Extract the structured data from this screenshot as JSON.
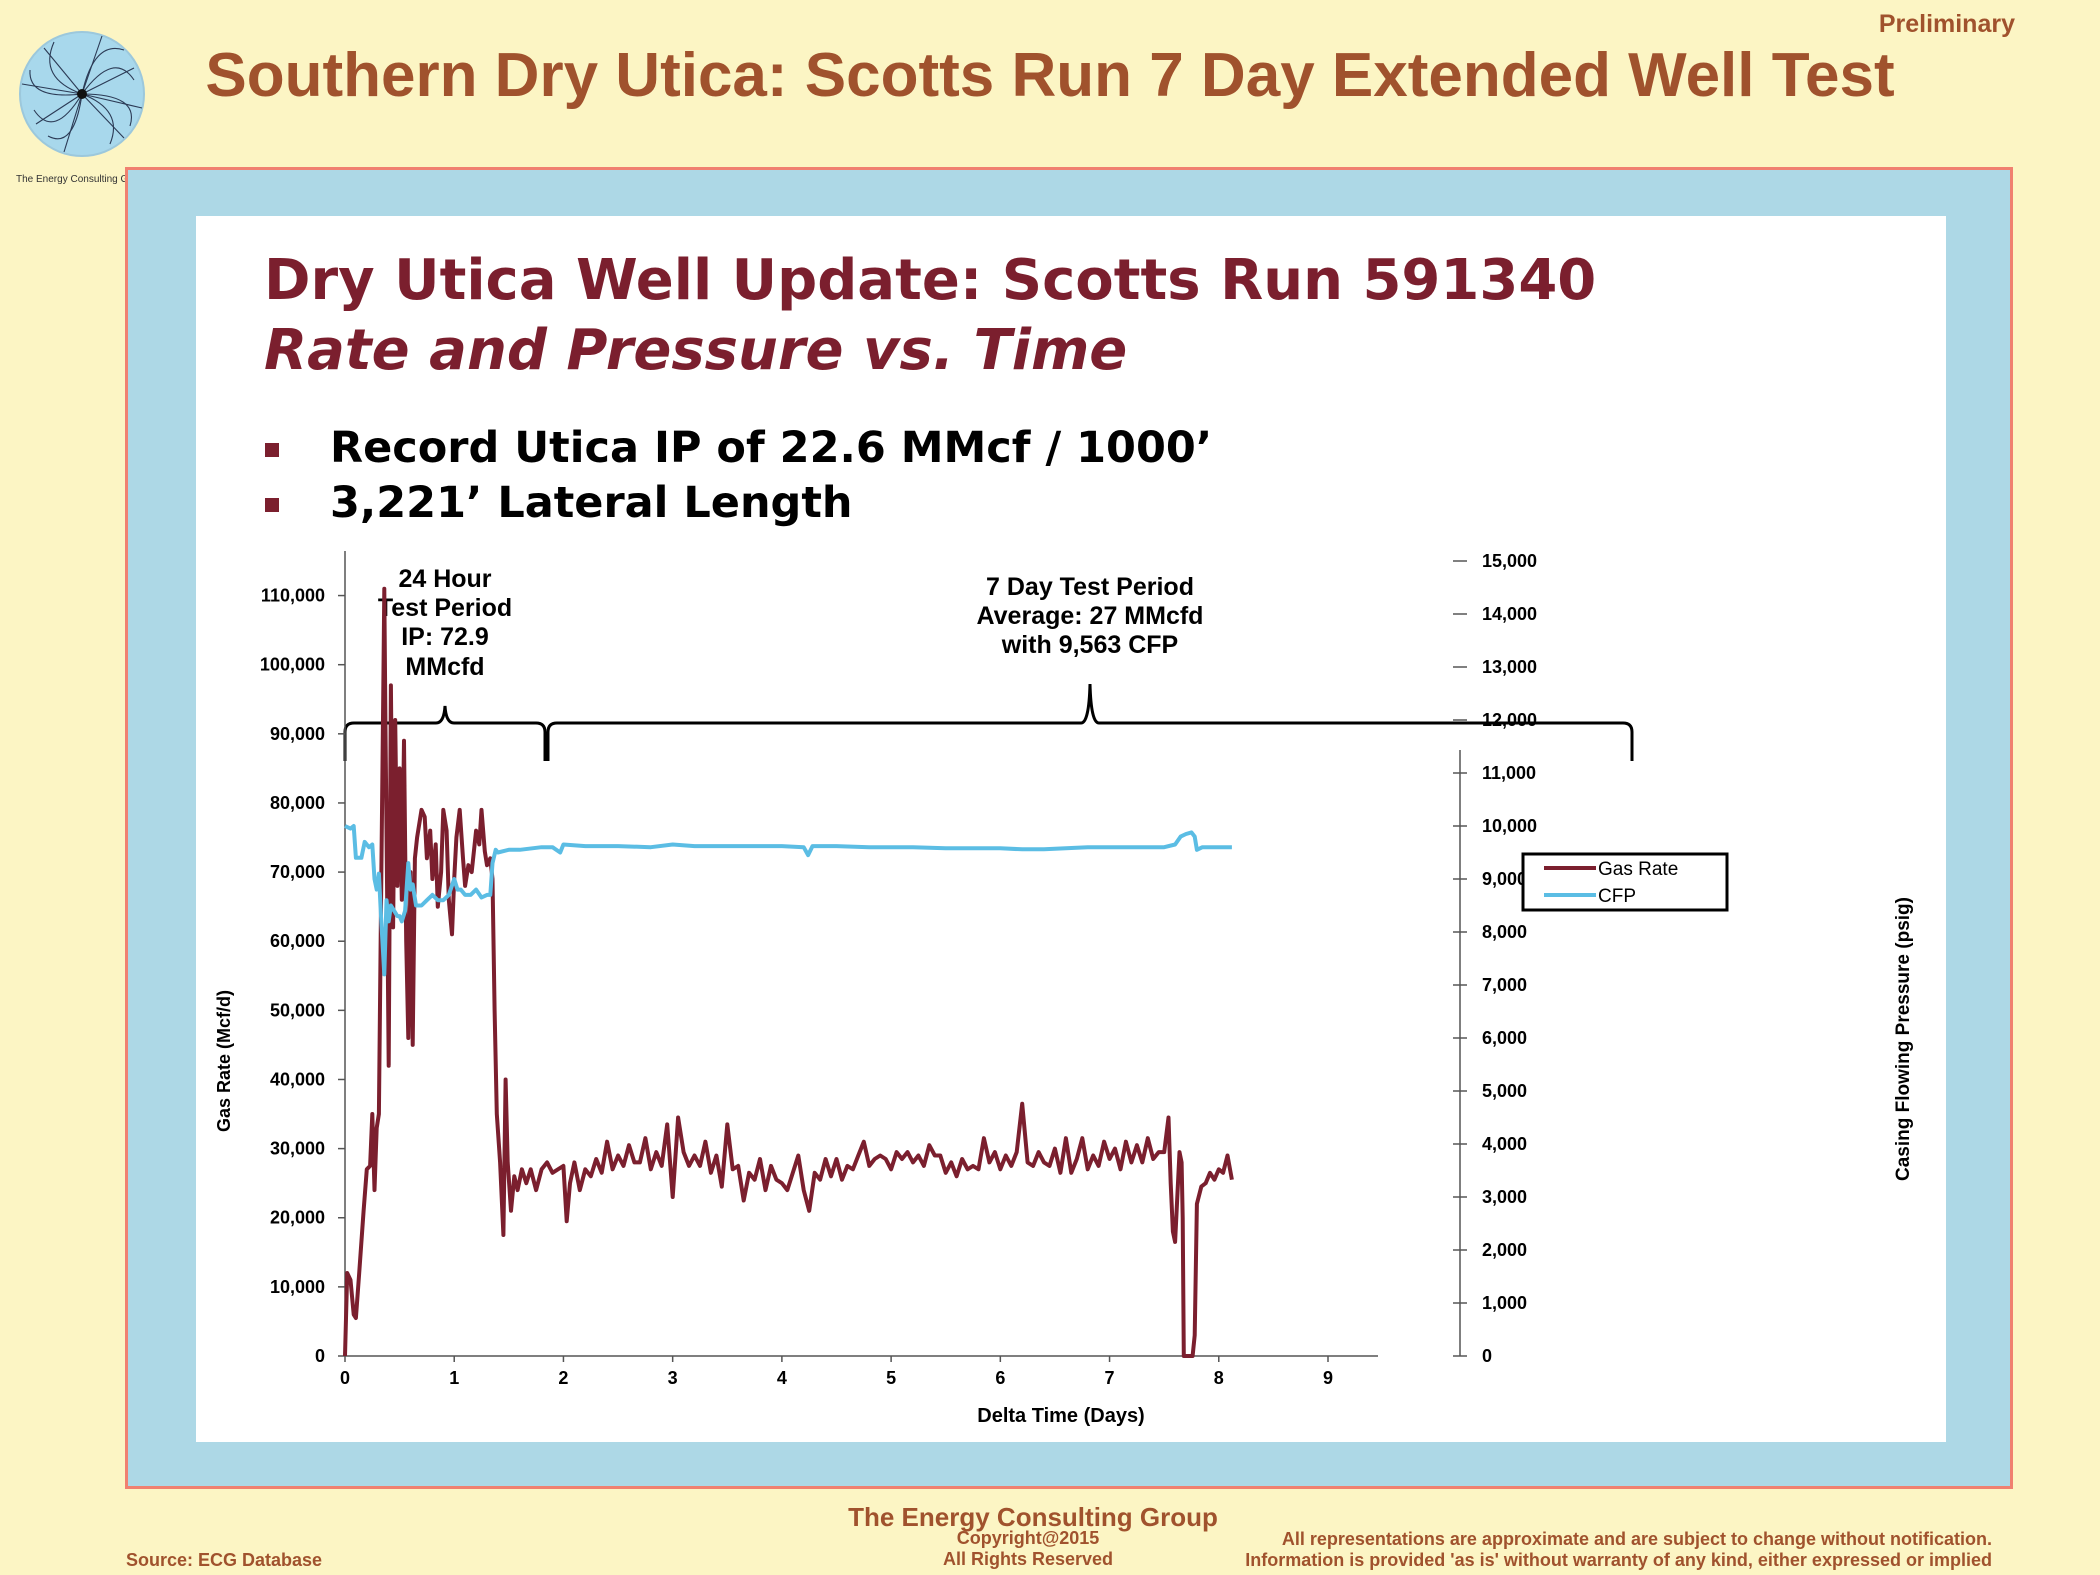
{
  "header": {
    "preliminary": "Preliminary",
    "title": "Southern Dry Utica: Scotts Run 7 Day Extended Well Test",
    "logo_caption": "The Energy Consulting Group"
  },
  "slide": {
    "title": "Dry Utica Well Update: Scotts Run 591340",
    "subtitle": "Rate and Pressure vs. Time",
    "bullets": [
      "Record Utica IP of 22.6 MMcf / 1000’",
      "3,221’ Lateral Length"
    ]
  },
  "annotations": {
    "test24": [
      "24 Hour",
      "Test Period",
      "IP: 72.9",
      "MMcfd"
    ],
    "test7": [
      "7 Day Test Period",
      "Average: 27 MMcfd",
      "with 9,563 CFP"
    ]
  },
  "chart_data": {
    "type": "line",
    "xlabel": "Delta Time (Days)",
    "ylabel": "Gas Rate (Mcf/d)",
    "y2label": "Casing Flowing Pressure (psig)",
    "xlim": [
      0,
      9
    ],
    "ylim": [
      0,
      115000
    ],
    "y2lim": [
      0,
      15000
    ],
    "xticks": [
      "0",
      "1",
      "2",
      "3",
      "4",
      "5",
      "6",
      "7",
      "8",
      "9"
    ],
    "yticks": [
      "0",
      "10,000",
      "20,000",
      "30,000",
      "40,000",
      "50,000",
      "60,000",
      "70,000",
      "80,000",
      "90,000",
      "100,000",
      "110,000"
    ],
    "y2ticks": [
      "0",
      "1,000",
      "2,000",
      "3,000",
      "4,000",
      "5,000",
      "6,000",
      "7,000",
      "8,000",
      "9,000",
      "10,000",
      "11,000",
      "12,000",
      "13,000",
      "14,000",
      "15,000"
    ],
    "legend_position": "right",
    "series": [
      {
        "name": "Gas Rate",
        "axis": "left",
        "color": "#7b1f2e",
        "points": [
          [
            0.0,
            0
          ],
          [
            0.02,
            12000
          ],
          [
            0.05,
            11000
          ],
          [
            0.08,
            6000
          ],
          [
            0.1,
            5500
          ],
          [
            0.13,
            12000
          ],
          [
            0.17,
            21000
          ],
          [
            0.2,
            27000
          ],
          [
            0.23,
            27500
          ],
          [
            0.25,
            35000
          ],
          [
            0.27,
            24000
          ],
          [
            0.29,
            33000
          ],
          [
            0.31,
            35000
          ],
          [
            0.33,
            65000
          ],
          [
            0.35,
            95000
          ],
          [
            0.36,
            111000
          ],
          [
            0.37,
            92000
          ],
          [
            0.39,
            60000
          ],
          [
            0.4,
            42000
          ],
          [
            0.42,
            97000
          ],
          [
            0.44,
            62000
          ],
          [
            0.46,
            92000
          ],
          [
            0.48,
            68000
          ],
          [
            0.5,
            85000
          ],
          [
            0.52,
            66000
          ],
          [
            0.54,
            89000
          ],
          [
            0.56,
            60000
          ],
          [
            0.58,
            46000
          ],
          [
            0.6,
            70000
          ],
          [
            0.62,
            45000
          ],
          [
            0.64,
            72000
          ],
          [
            0.66,
            75000
          ],
          [
            0.7,
            79000
          ],
          [
            0.73,
            78000
          ],
          [
            0.75,
            72000
          ],
          [
            0.78,
            76000
          ],
          [
            0.8,
            69000
          ],
          [
            0.83,
            74000
          ],
          [
            0.85,
            65000
          ],
          [
            0.88,
            70000
          ],
          [
            0.9,
            79000
          ],
          [
            0.93,
            76000
          ],
          [
            0.95,
            66000
          ],
          [
            0.98,
            61000
          ],
          [
            1.0,
            69000
          ],
          [
            1.02,
            75000
          ],
          [
            1.05,
            79000
          ],
          [
            1.08,
            72000
          ],
          [
            1.1,
            68000
          ],
          [
            1.13,
            71000
          ],
          [
            1.16,
            70000
          ],
          [
            1.2,
            76000
          ],
          [
            1.23,
            74000
          ],
          [
            1.25,
            79000
          ],
          [
            1.28,
            73000
          ],
          [
            1.3,
            71000
          ],
          [
            1.33,
            72000
          ],
          [
            1.35,
            69000
          ],
          [
            1.37,
            50000
          ],
          [
            1.39,
            35000
          ],
          [
            1.42,
            28000
          ],
          [
            1.45,
            17500
          ],
          [
            1.47,
            40000
          ],
          [
            1.49,
            28000
          ],
          [
            1.52,
            21000
          ],
          [
            1.55,
            26000
          ],
          [
            1.58,
            24000
          ],
          [
            1.62,
            27000
          ],
          [
            1.66,
            25000
          ],
          [
            1.7,
            27000
          ],
          [
            1.75,
            24000
          ],
          [
            1.8,
            27000
          ],
          [
            1.85,
            28000
          ],
          [
            1.9,
            26500
          ],
          [
            1.95,
            27000
          ],
          [
            2.0,
            27500
          ],
          [
            2.03,
            19500
          ],
          [
            2.06,
            25000
          ],
          [
            2.1,
            28000
          ],
          [
            2.15,
            24000
          ],
          [
            2.2,
            27000
          ],
          [
            2.25,
            26000
          ],
          [
            2.3,
            28500
          ],
          [
            2.35,
            26500
          ],
          [
            2.4,
            31000
          ],
          [
            2.45,
            27000
          ],
          [
            2.5,
            29000
          ],
          [
            2.55,
            27500
          ],
          [
            2.6,
            30500
          ],
          [
            2.65,
            28000
          ],
          [
            2.7,
            28000
          ],
          [
            2.75,
            31500
          ],
          [
            2.8,
            27000
          ],
          [
            2.85,
            29500
          ],
          [
            2.9,
            27500
          ],
          [
            2.95,
            33500
          ],
          [
            3.0,
            23000
          ],
          [
            3.05,
            34500
          ],
          [
            3.1,
            29500
          ],
          [
            3.15,
            27500
          ],
          [
            3.2,
            29000
          ],
          [
            3.25,
            27500
          ],
          [
            3.3,
            31000
          ],
          [
            3.35,
            26500
          ],
          [
            3.4,
            29000
          ],
          [
            3.45,
            24500
          ],
          [
            3.5,
            33500
          ],
          [
            3.55,
            27000
          ],
          [
            3.6,
            27500
          ],
          [
            3.65,
            22500
          ],
          [
            3.7,
            26500
          ],
          [
            3.75,
            25500
          ],
          [
            3.8,
            28500
          ],
          [
            3.85,
            24000
          ],
          [
            3.9,
            27500
          ],
          [
            3.95,
            25500
          ],
          [
            4.0,
            25000
          ],
          [
            4.05,
            24000
          ],
          [
            4.1,
            26500
          ],
          [
            4.15,
            29000
          ],
          [
            4.2,
            24000
          ],
          [
            4.25,
            21000
          ],
          [
            4.3,
            26500
          ],
          [
            4.35,
            25500
          ],
          [
            4.4,
            28500
          ],
          [
            4.45,
            26000
          ],
          [
            4.5,
            28500
          ],
          [
            4.55,
            25500
          ],
          [
            4.6,
            27500
          ],
          [
            4.65,
            27000
          ],
          [
            4.7,
            29000
          ],
          [
            4.75,
            31000
          ],
          [
            4.8,
            27500
          ],
          [
            4.85,
            28500
          ],
          [
            4.9,
            29000
          ],
          [
            4.95,
            28500
          ],
          [
            5.0,
            27000
          ],
          [
            5.05,
            29500
          ],
          [
            5.1,
            28500
          ],
          [
            5.15,
            29500
          ],
          [
            5.2,
            28000
          ],
          [
            5.25,
            29000
          ],
          [
            5.3,
            27500
          ],
          [
            5.35,
            30500
          ],
          [
            5.4,
            29000
          ],
          [
            5.45,
            29000
          ],
          [
            5.5,
            26500
          ],
          [
            5.55,
            28000
          ],
          [
            5.6,
            26000
          ],
          [
            5.65,
            28500
          ],
          [
            5.7,
            27000
          ],
          [
            5.75,
            27500
          ],
          [
            5.8,
            27000
          ],
          [
            5.85,
            31500
          ],
          [
            5.9,
            28000
          ],
          [
            5.95,
            29500
          ],
          [
            6.0,
            27000
          ],
          [
            6.05,
            29000
          ],
          [
            6.1,
            27500
          ],
          [
            6.15,
            29500
          ],
          [
            6.2,
            36500
          ],
          [
            6.25,
            28000
          ],
          [
            6.3,
            27500
          ],
          [
            6.35,
            29500
          ],
          [
            6.4,
            28000
          ],
          [
            6.45,
            27500
          ],
          [
            6.5,
            30000
          ],
          [
            6.55,
            26500
          ],
          [
            6.6,
            31500
          ],
          [
            6.65,
            26500
          ],
          [
            6.7,
            28500
          ],
          [
            6.75,
            31500
          ],
          [
            6.8,
            27000
          ],
          [
            6.85,
            29000
          ],
          [
            6.9,
            27500
          ],
          [
            6.95,
            31000
          ],
          [
            7.0,
            28500
          ],
          [
            7.05,
            30000
          ],
          [
            7.1,
            27000
          ],
          [
            7.15,
            31000
          ],
          [
            7.2,
            28000
          ],
          [
            7.25,
            30500
          ],
          [
            7.3,
            28000
          ],
          [
            7.35,
            31500
          ],
          [
            7.4,
            28500
          ],
          [
            7.45,
            29500
          ],
          [
            7.5,
            29500
          ],
          [
            7.54,
            34500
          ],
          [
            7.56,
            25000
          ],
          [
            7.58,
            18000
          ],
          [
            7.6,
            16500
          ],
          [
            7.62,
            23000
          ],
          [
            7.64,
            29500
          ],
          [
            7.66,
            28000
          ],
          [
            7.67,
            20000
          ],
          [
            7.68,
            0
          ],
          [
            7.72,
            0
          ],
          [
            7.76,
            0
          ],
          [
            7.78,
            3000
          ],
          [
            7.8,
            22000
          ],
          [
            7.84,
            24500
          ],
          [
            7.88,
            25000
          ],
          [
            7.92,
            26500
          ],
          [
            7.96,
            25500
          ],
          [
            8.0,
            27000
          ],
          [
            8.04,
            26500
          ],
          [
            8.08,
            29000
          ],
          [
            8.12,
            25500
          ]
        ]
      },
      {
        "name": "CFP",
        "axis": "right",
        "color": "#5bbde4",
        "points": [
          [
            0.0,
            10000
          ],
          [
            0.05,
            9950
          ],
          [
            0.08,
            10000
          ],
          [
            0.1,
            9400
          ],
          [
            0.15,
            9400
          ],
          [
            0.18,
            9700
          ],
          [
            0.22,
            9600
          ],
          [
            0.25,
            9650
          ],
          [
            0.27,
            9000
          ],
          [
            0.29,
            8800
          ],
          [
            0.31,
            9100
          ],
          [
            0.33,
            8300
          ],
          [
            0.36,
            7200
          ],
          [
            0.38,
            8600
          ],
          [
            0.4,
            8200
          ],
          [
            0.42,
            8500
          ],
          [
            0.45,
            8400
          ],
          [
            0.48,
            8300
          ],
          [
            0.5,
            8300
          ],
          [
            0.52,
            8200
          ],
          [
            0.55,
            8400
          ],
          [
            0.58,
            9300
          ],
          [
            0.6,
            8800
          ],
          [
            0.62,
            8900
          ],
          [
            0.65,
            8500
          ],
          [
            0.7,
            8500
          ],
          [
            0.75,
            8600
          ],
          [
            0.8,
            8700
          ],
          [
            0.85,
            8600
          ],
          [
            0.9,
            8600
          ],
          [
            0.95,
            8700
          ],
          [
            1.0,
            9000
          ],
          [
            1.03,
            8800
          ],
          [
            1.06,
            8800
          ],
          [
            1.1,
            8700
          ],
          [
            1.15,
            8700
          ],
          [
            1.2,
            8800
          ],
          [
            1.25,
            8650
          ],
          [
            1.3,
            8700
          ],
          [
            1.33,
            8700
          ],
          [
            1.35,
            9300
          ],
          [
            1.38,
            9550
          ],
          [
            1.4,
            9500
          ],
          [
            1.5,
            9550
          ],
          [
            1.6,
            9550
          ],
          [
            1.8,
            9600
          ],
          [
            1.9,
            9600
          ],
          [
            1.97,
            9500
          ],
          [
            2.0,
            9650
          ],
          [
            2.2,
            9620
          ],
          [
            2.5,
            9620
          ],
          [
            2.8,
            9600
          ],
          [
            3.0,
            9650
          ],
          [
            3.2,
            9620
          ],
          [
            3.5,
            9620
          ],
          [
            3.8,
            9620
          ],
          [
            4.0,
            9620
          ],
          [
            4.2,
            9600
          ],
          [
            4.24,
            9450
          ],
          [
            4.28,
            9620
          ],
          [
            4.5,
            9620
          ],
          [
            4.8,
            9600
          ],
          [
            5.0,
            9600
          ],
          [
            5.2,
            9600
          ],
          [
            5.5,
            9580
          ],
          [
            5.8,
            9580
          ],
          [
            6.0,
            9580
          ],
          [
            6.2,
            9560
          ],
          [
            6.4,
            9560
          ],
          [
            6.6,
            9580
          ],
          [
            6.8,
            9600
          ],
          [
            7.0,
            9600
          ],
          [
            7.2,
            9600
          ],
          [
            7.5,
            9600
          ],
          [
            7.6,
            9650
          ],
          [
            7.65,
            9800
          ],
          [
            7.7,
            9850
          ],
          [
            7.75,
            9880
          ],
          [
            7.78,
            9800
          ],
          [
            7.8,
            9550
          ],
          [
            7.85,
            9600
          ],
          [
            8.0,
            9600
          ],
          [
            8.12,
            9600
          ]
        ]
      }
    ]
  },
  "footer": {
    "company": "The Energy Consulting Group",
    "copyright": "Copyright@2015",
    "rights": "All Rights Reserved",
    "source": "Source: ECG Database",
    "disclaimer1": "All representations are approximate and are subject to change without notification.",
    "disclaimer2": "Information is provided 'as is' without warranty of any kind, either expressed or implied"
  }
}
